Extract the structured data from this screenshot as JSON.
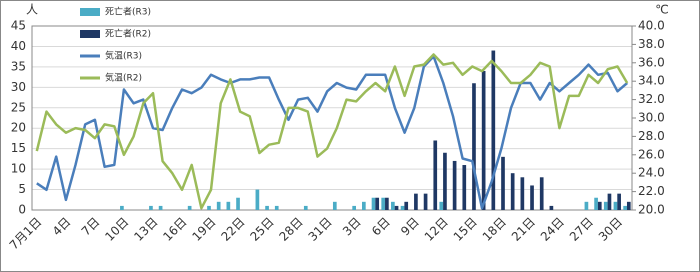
{
  "chart_data": {
    "type": "bar-line",
    "ylabel": "人",
    "y2label": "℃",
    "categories": [
      "7月1日",
      null,
      null,
      "4日",
      null,
      null,
      "7日",
      null,
      null,
      "10日",
      null,
      null,
      "13日",
      null,
      null,
      "16日",
      null,
      null,
      "19日",
      null,
      null,
      "22日",
      null,
      null,
      "25日",
      null,
      null,
      "28日",
      null,
      null,
      "31日",
      null,
      null,
      "3日",
      null,
      null,
      "6日",
      null,
      null,
      "9日",
      null,
      null,
      "12日",
      null,
      null,
      "15日",
      null,
      null,
      "18日",
      null,
      null,
      "21日",
      null,
      null,
      "24日",
      null,
      null,
      "27日",
      null,
      null,
      "30日",
      null
    ],
    "series": [
      {
        "name": "死亡者(R3)",
        "type": "bar",
        "color": "#4bacc6",
        "values": [
          0,
          0,
          0,
          0,
          0,
          0,
          0,
          0,
          0,
          1,
          0,
          0,
          1,
          1,
          0,
          0,
          1,
          0,
          1,
          2,
          2,
          3,
          0,
          5,
          1,
          1,
          0,
          0,
          1,
          0,
          0,
          2,
          0,
          1,
          2,
          3,
          3,
          2,
          1,
          0,
          0,
          0,
          2,
          0,
          0,
          0,
          0,
          0,
          0,
          0,
          0,
          0,
          0,
          0,
          0,
          0,
          0,
          2,
          3,
          2,
          2,
          1
        ]
      },
      {
        "name": "死亡者(R2)",
        "type": "bar",
        "color": "#1f3864",
        "values": [
          0,
          0,
          0,
          0,
          0,
          0,
          0,
          0,
          0,
          0,
          0,
          0,
          0,
          0,
          0,
          0,
          0,
          0,
          0,
          0,
          0,
          0,
          0,
          0,
          0,
          0,
          0,
          0,
          0,
          0,
          0,
          0,
          0,
          0,
          0,
          3,
          3,
          1,
          2,
          4,
          4,
          17,
          14,
          12,
          11,
          31,
          34,
          39,
          13,
          9,
          8,
          6,
          8,
          1,
          0,
          0,
          0,
          0,
          2,
          4,
          4,
          2
        ]
      },
      {
        "name": "気温(R3)",
        "type": "line",
        "axis": "y2",
        "color": "#4a7ebb",
        "values": [
          22.9,
          22.2,
          25.8,
          21.1,
          24.9,
          29.3,
          29.8,
          24.7,
          24.9,
          33.1,
          31.6,
          32.0,
          28.9,
          28.7,
          31.1,
          33.1,
          32.7,
          33.3,
          34.7,
          34.2,
          33.8,
          34.2,
          34.2,
          34.4,
          34.4,
          32.0,
          29.8,
          32.0,
          32.2,
          30.7,
          32.9,
          33.8,
          33.3,
          33.1,
          34.7,
          34.7,
          34.7,
          31.1,
          28.4,
          31.1,
          35.6,
          36.7,
          33.8,
          30.2,
          25.6,
          25.3,
          20.2,
          23.1,
          26.7,
          31.1,
          33.8,
          33.8,
          32.0,
          33.8,
          32.9,
          33.8,
          34.7,
          35.8,
          34.7,
          34.9,
          32.9,
          33.8
        ]
      },
      {
        "name": "気温(R2)",
        "type": "line",
        "axis": "y2",
        "color": "#9bbb59",
        "values": [
          26.4,
          30.7,
          29.3,
          28.4,
          28.9,
          28.7,
          27.8,
          29.3,
          29.1,
          26.0,
          28.0,
          31.6,
          32.7,
          25.3,
          24.0,
          22.2,
          24.9,
          20.2,
          22.2,
          31.6,
          34.2,
          30.7,
          30.2,
          26.2,
          27.1,
          27.3,
          31.1,
          31.1,
          30.7,
          25.8,
          26.7,
          28.9,
          32.0,
          31.8,
          32.9,
          33.8,
          32.9,
          35.6,
          32.4,
          35.6,
          35.8,
          36.9,
          35.8,
          36.0,
          34.7,
          35.6,
          35.1,
          36.2,
          35.1,
          33.8,
          33.8,
          34.7,
          36.0,
          35.6,
          28.9,
          32.4,
          32.4,
          34.7,
          33.8,
          35.3,
          35.6,
          33.8
        ]
      }
    ],
    "ylim": [
      0,
      45
    ],
    "yticks": [
      0,
      5,
      10,
      15,
      20,
      25,
      30,
      35,
      40,
      45
    ],
    "y2lim": [
      20,
      40
    ],
    "y2ticks": [
      {
        "value": 20,
        "label": "20.0"
      },
      {
        "value": 22,
        "label": "22.0"
      },
      {
        "value": 24,
        "label": "24.0"
      },
      {
        "value": 26,
        "label": "26.0"
      },
      {
        "value": 28,
        "label": "28.0"
      },
      {
        "value": 30,
        "label": "30.0"
      },
      {
        "value": 32,
        "label": "32.0"
      },
      {
        "value": 34,
        "label": "34.0"
      },
      {
        "value": 36,
        "label": "36.0"
      },
      {
        "value": 38,
        "label": "38.0"
      },
      {
        "value": 40,
        "label": "40.0"
      }
    ],
    "grid": true
  }
}
